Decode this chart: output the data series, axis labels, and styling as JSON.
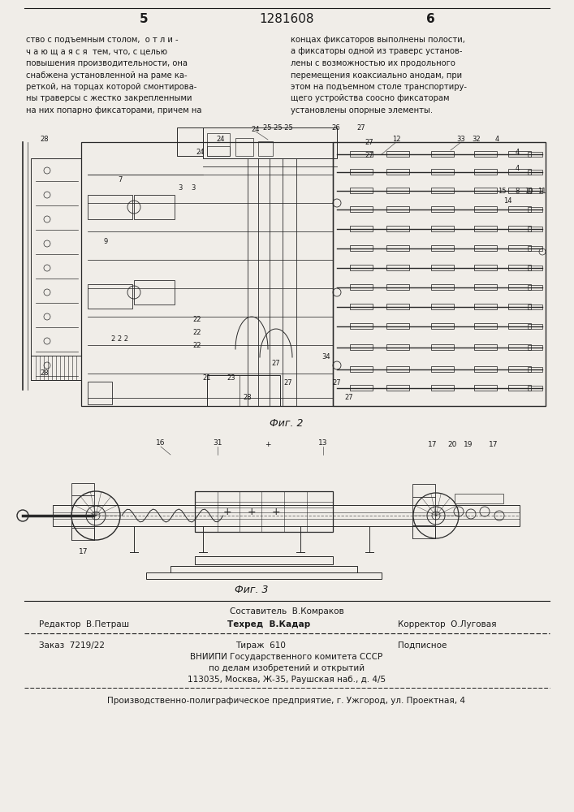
{
  "page_number_left": "5",
  "page_number_center": "1281608",
  "page_number_right": "6",
  "left_text": [
    "ство с подъемным столом,  о т л и -",
    "ч а ю щ а я с я  тем, что, с целью",
    "повышения производительности, она",
    "снабжена установленной на раме ка-",
    "реткой, на торцах которой смонтирова-",
    "ны траверсы с жестко закрепленными",
    "на них попарно фиксаторами, причем на"
  ],
  "right_text": [
    "концах фиксаторов выполнены полости,",
    "а фиксаторы одной из траверс установ-",
    "лены с возможностью их продольного",
    "перемещения коаксиально анодам, при",
    "этом на подъемном столе транспортиру-",
    "щего устройства соосно фиксаторам",
    "установлены опорные элементы."
  ],
  "fig2_label": "Фиг. 2",
  "fig3_label": "Фиг. 3",
  "editor_line": "Редактор  В.Петраш",
  "composer_line": "Составитель  В.Комраков",
  "corrector_line": "Корректор  О.Луговая",
  "techred_line": "Техред  В.Кадар",
  "order_line": "Заказ  7219/22",
  "tirazh_line": "Тираж  610",
  "podpisnoe_line": "Подписное",
  "vniip_line": "ВНИИПИ Государственного комитета СССР",
  "vniip_line2": "по делам изобретений и открытий",
  "vniip_line3": "113035, Москва, Ж-35, Раушская наб., д. 4/5",
  "factory_line": "Производственно-полиграфическое предприятие, г. Ужгород, ул. Проектная, 4",
  "bg_color": "#f0ede8",
  "text_color": "#1a1a1a",
  "line_color": "#1a1a1a",
  "draw_color": "#2a2a2a"
}
